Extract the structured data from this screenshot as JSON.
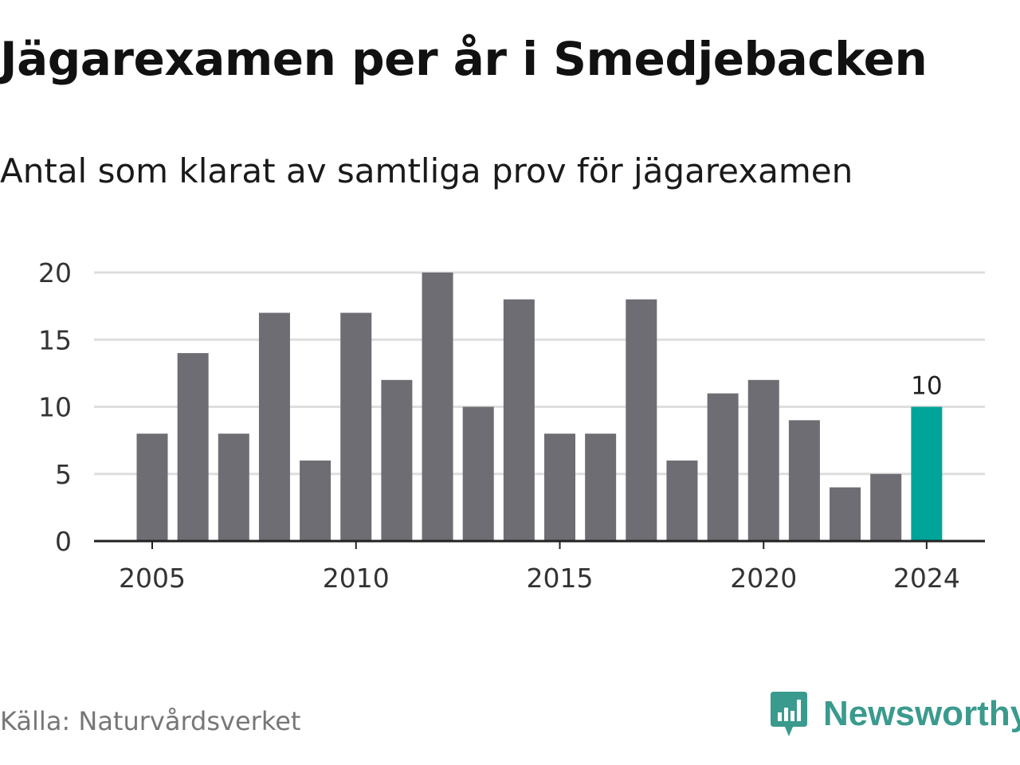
{
  "title": "Jägarexamen per år i Smedjebacken",
  "subtitle": "Antal som klarat av samtliga prov för jägarexamen",
  "source": "Källa: Naturvårdsverket",
  "brand": {
    "name": "Newsworthy",
    "icon": "newsworthy-logo-icon",
    "color": "#3a9a8e"
  },
  "colors": {
    "bar": "#6d6d73",
    "highlight": "#00a499",
    "grid": "#dedede",
    "axis": "#222222",
    "text": "#333333"
  },
  "chart_data": {
    "type": "bar",
    "categories": [
      "2005",
      "2006",
      "2007",
      "2008",
      "2009",
      "2010",
      "2011",
      "2012",
      "2013",
      "2014",
      "2015",
      "2016",
      "2017",
      "2018",
      "2019",
      "2020",
      "2021",
      "2022",
      "2023",
      "2024"
    ],
    "values": [
      8,
      14,
      8,
      17,
      6,
      17,
      12,
      20,
      10,
      18,
      8,
      8,
      18,
      6,
      11,
      12,
      9,
      4,
      5,
      10
    ],
    "x_tick_labels": [
      "2005",
      "2010",
      "2015",
      "2020",
      "2024"
    ],
    "y_ticks": [
      0,
      5,
      10,
      15,
      20
    ],
    "ylim": [
      0,
      20
    ],
    "grid": true,
    "highlight": {
      "category": "2024",
      "label": "10"
    }
  }
}
